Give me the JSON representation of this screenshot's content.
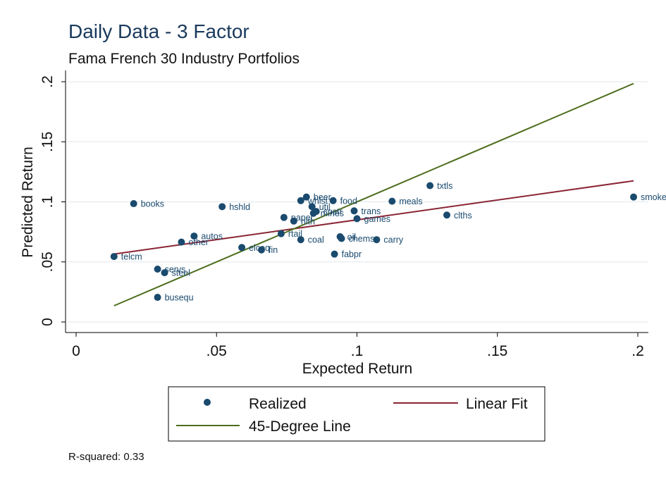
{
  "chart_data": {
    "type": "scatter",
    "title": "Daily Data - 3 Factor",
    "subtitle": "Fama French 30 Industry Portfolios",
    "xlabel": "Expected Return",
    "ylabel": "Predicted Return",
    "xlim": [
      0,
      0.2
    ],
    "ylim": [
      0,
      0.2
    ],
    "x_ticks": [
      0,
      0.05,
      0.1,
      0.15,
      0.2
    ],
    "x_tick_labels": [
      "0",
      ".05",
      ".1",
      ".15",
      ".2"
    ],
    "y_ticks": [
      0,
      0.05,
      0.1,
      0.15,
      0.2
    ],
    "y_tick_labels": [
      "0",
      ".05",
      ".1",
      ".15",
      ".2"
    ],
    "grid": "horizontal",
    "series": [
      {
        "name": "Realized",
        "kind": "scatter",
        "color": "#1a4a6e",
        "points": [
          {
            "label": "telcm",
            "x": 0.0135,
            "y": 0.0545
          },
          {
            "label": "books",
            "x": 0.0205,
            "y": 0.0985
          },
          {
            "label": "busequ",
            "x": 0.029,
            "y": 0.0205
          },
          {
            "label": "servs",
            "x": 0.029,
            "y": 0.044
          },
          {
            "label": "steel",
            "x": 0.0315,
            "y": 0.041
          },
          {
            "label": "other",
            "x": 0.0375,
            "y": 0.0665
          },
          {
            "label": "autos",
            "x": 0.042,
            "y": 0.0715
          },
          {
            "label": "hshld",
            "x": 0.052,
            "y": 0.096
          },
          {
            "label": "elceq",
            "x": 0.059,
            "y": 0.062
          },
          {
            "label": "fin",
            "x": 0.066,
            "y": 0.06
          },
          {
            "label": "rtail",
            "x": 0.073,
            "y": 0.0735
          },
          {
            "label": "paper",
            "x": 0.074,
            "y": 0.087
          },
          {
            "label": "hlth",
            "x": 0.0775,
            "y": 0.084
          },
          {
            "label": "coal",
            "x": 0.08,
            "y": 0.0685
          },
          {
            "label": "whlsl",
            "x": 0.08,
            "y": 0.101
          },
          {
            "label": "beer",
            "x": 0.082,
            "y": 0.104
          },
          {
            "label": "util",
            "x": 0.084,
            "y": 0.096
          },
          {
            "label": "mines",
            "x": 0.0845,
            "y": 0.0905
          },
          {
            "label": "cnstr",
            "x": 0.0855,
            "y": 0.092
          },
          {
            "label": "food",
            "x": 0.0915,
            "y": 0.101
          },
          {
            "label": "fabpr",
            "x": 0.092,
            "y": 0.0565
          },
          {
            "label": "oil",
            "x": 0.094,
            "y": 0.071
          },
          {
            "label": "chems",
            "x": 0.0945,
            "y": 0.0695
          },
          {
            "label": "trans",
            "x": 0.099,
            "y": 0.0925
          },
          {
            "label": "games",
            "x": 0.1,
            "y": 0.086
          },
          {
            "label": "carry",
            "x": 0.107,
            "y": 0.0685
          },
          {
            "label": "meals",
            "x": 0.1125,
            "y": 0.1005
          },
          {
            "label": "txtls",
            "x": 0.126,
            "y": 0.1135
          },
          {
            "label": "clths",
            "x": 0.132,
            "y": 0.089
          },
          {
            "label": "smoke",
            "x": 0.1985,
            "y": 0.104
          }
        ]
      },
      {
        "name": "Linear Fit",
        "kind": "line",
        "color": "#8b2535",
        "x": [
          0.0135,
          0.1985
        ],
        "y": [
          0.0565,
          0.1175
        ]
      },
      {
        "name": "45-Degree Line",
        "kind": "line",
        "color": "#4e6e1e",
        "x": [
          0.0135,
          0.1985
        ],
        "y": [
          0.0135,
          0.1985
        ]
      }
    ],
    "legend": {
      "position": "bottom",
      "entries": [
        "Realized",
        "Linear Fit",
        "45-Degree Line"
      ]
    },
    "note": "R-squared: 0.33"
  }
}
